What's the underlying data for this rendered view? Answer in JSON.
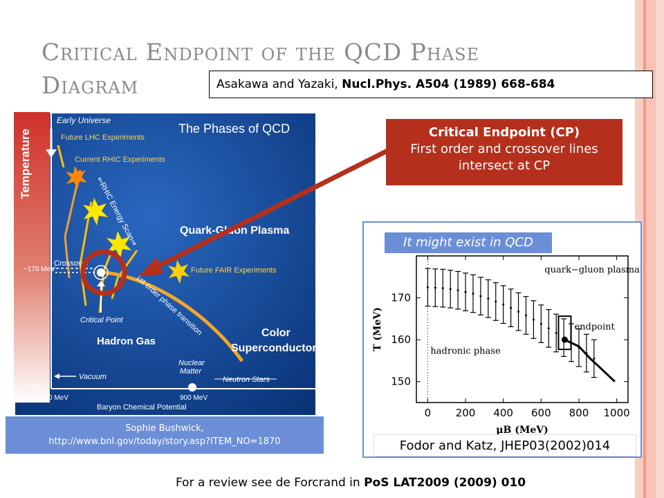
{
  "slide": {
    "title_line1": "Critical Endpoint of the QCD Phase",
    "title_line2": "Diagram",
    "ref_authors": "Asakawa and Yazaki, ",
    "ref_journal": "Nucl.Phys. A504 (1989) 668-684",
    "cp_box": {
      "heading": "Critical Endpoint (CP)",
      "line1": "First order and crossover lines",
      "line2": "intersect at CP"
    },
    "exist_label": "It might exist in QCD",
    "fodor_ref": "Fodor and Katz, JHEP03(2002)014",
    "credit_line1": "Sophie Bushwick,",
    "credit_line2": "http://www.bnl.gov/today/story.asp?ITEM_NO=1870",
    "review_prefix": "For a review see de Forcrand in ",
    "review_bold": "PoS LAT2009 (2009) 010"
  },
  "qcd_diagram": {
    "title": "The Phases of QCD",
    "y_axis": "Temperature",
    "x_axis": "Baryon Chemical Potential",
    "tick_170": "~170 MeV",
    "tick_0": "0 MeV",
    "x_tick_0": "0 MeV",
    "x_tick_900": "900 MeV",
    "early_universe": "Early Universe",
    "future_lhc": "Future LHC Experiments",
    "current_rhic": "Current RHIC Experiments",
    "rhic_scan": "⇐RHIC Energy Scan⇒",
    "qgp": "Quark-Gluon Plasma",
    "fair": "Future FAIR Experiments",
    "crossover": "Crossover",
    "first_order_1": "1st order phase transition",
    "critical_point": "Critical Point",
    "hadron_gas": "Hadron Gas",
    "color_sc_1": "Color",
    "color_sc_2": "Superconductor",
    "vacuum": "Vacuum",
    "nuclear_1": "Nuclear",
    "nuclear_2": "Matter",
    "neutron_stars": "Neutron Stars"
  },
  "chart_data": {
    "type": "scatter",
    "xlabel": "μB (MeV)",
    "ylabel": "T (MeV)",
    "xlim": [
      -60,
      1060
    ],
    "ylim": [
      145,
      180
    ],
    "x_ticks": [
      0,
      200,
      400,
      600,
      800,
      1000
    ],
    "y_ticks": [
      150,
      160,
      170
    ],
    "region_labels": [
      "quark−gluon plasma",
      "hadronic phase",
      "endpoint"
    ],
    "crossover_points": [
      {
        "x": 0,
        "y": 172.5,
        "err": 4.5
      },
      {
        "x": 40,
        "y": 172.4,
        "err": 4.5
      },
      {
        "x": 80,
        "y": 172.3,
        "err": 4.5
      },
      {
        "x": 120,
        "y": 172.1,
        "err": 4.5
      },
      {
        "x": 160,
        "y": 171.8,
        "err": 4.5
      },
      {
        "x": 200,
        "y": 171.4,
        "err": 4.5
      },
      {
        "x": 240,
        "y": 171.0,
        "err": 4.5
      },
      {
        "x": 280,
        "y": 170.4,
        "err": 4.5
      },
      {
        "x": 320,
        "y": 169.8,
        "err": 4.5
      },
      {
        "x": 360,
        "y": 169.1,
        "err": 4.5
      },
      {
        "x": 400,
        "y": 168.4,
        "err": 4.5
      },
      {
        "x": 440,
        "y": 167.6,
        "err": 4.5
      },
      {
        "x": 480,
        "y": 166.7,
        "err": 4.5
      },
      {
        "x": 520,
        "y": 165.8,
        "err": 4.5
      },
      {
        "x": 560,
        "y": 164.8,
        "err": 4.5
      },
      {
        "x": 600,
        "y": 163.8,
        "err": 4.5
      },
      {
        "x": 640,
        "y": 162.7,
        "err": 4.5
      },
      {
        "x": 680,
        "y": 161.6,
        "err": 4.5
      },
      {
        "x": 720,
        "y": 160.5,
        "err": 4.5
      },
      {
        "x": 760,
        "y": 159.3,
        "err": 4.5
      },
      {
        "x": 800,
        "y": 158.1,
        "err": 4.5
      },
      {
        "x": 840,
        "y": 156.8,
        "err": 4.5
      },
      {
        "x": 880,
        "y": 155.5,
        "err": 4.5
      }
    ],
    "endpoint": {
      "x": 725,
      "y": 160
    },
    "first_order_line": [
      {
        "x": 725,
        "y": 160
      },
      {
        "x": 800,
        "y": 158.4
      },
      {
        "x": 860,
        "y": 155.5
      },
      {
        "x": 920,
        "y": 153
      },
      {
        "x": 990,
        "y": 150
      }
    ]
  }
}
